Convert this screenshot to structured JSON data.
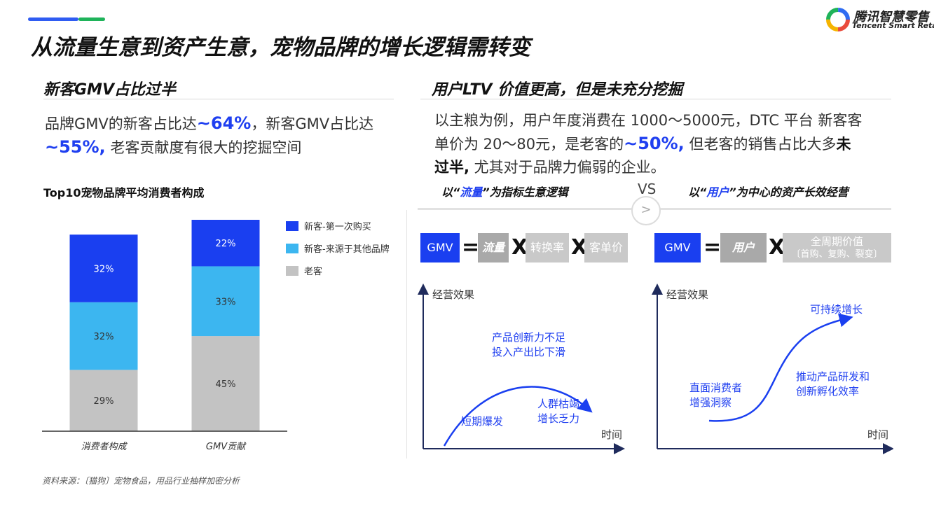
{
  "header": {
    "title": "从流量生意到资产生意，宠物品牌的增长逻辑需转变",
    "logo_cn": "腾讯智慧零售",
    "logo_en": "Tencent Smart Retail",
    "accent_blue": "#2f5cf2",
    "accent_green": "#1fb35a"
  },
  "left": {
    "section_title": "新客GMV占比过半",
    "desc_part1": "品牌GMV的新客占比达",
    "desc_hl1": "~64%",
    "desc_part2": "，新客GMV占比达",
    "desc_hl2": "~55%,",
    "desc_part3": " 老客贡献度有很大的挖掘空间",
    "source": "资料来源：〔猫狗〕宠物食品，用品行业抽样加密分析"
  },
  "chart_data": {
    "type": "bar",
    "stacked": true,
    "title": "Top10宠物品牌平均消费者构成",
    "categories": [
      "消费者构成",
      "GMV贡献"
    ],
    "series": [
      {
        "name": "老客",
        "values": [
          29,
          45
        ],
        "labels": [
          "29%",
          "45%"
        ],
        "color": "#c3c3c3"
      },
      {
        "name": "新客-来源于其他品牌",
        "values": [
          32,
          33
        ],
        "labels": [
          "32%",
          "33%"
        ],
        "color": "#3cb6f0"
      },
      {
        "name": "新客-第一次购买",
        "values": [
          32,
          22
        ],
        "labels": [
          "32%",
          "22%"
        ],
        "color": "#1a3ff0"
      }
    ],
    "legend": [
      "新客-第一次购买",
      "新客-来源于其他品牌",
      "老客"
    ],
    "legend_position": "right",
    "ylim": [
      0,
      100
    ],
    "grid": false
  },
  "right": {
    "section_title": "用户LTV 价值更高，但是未充分挖掘",
    "desc_line1": "以主粮为例，用户年度消费在 1000～5000元，DTC 平台 新客客",
    "desc_line2a": "单价为 20～80元，是老客的",
    "desc_line2_hl": "~50%,",
    "desc_line2b": " 但老客的销售占比大多",
    "desc_line2_bold": "未",
    "desc_line3_bold": "过半,",
    "desc_line3b": " 尤其对于品牌力偏弱的企业。",
    "vs": "VS",
    "vs_arrow": ">",
    "left_logic": {
      "pre": "以“",
      "hl": "流量",
      "post": "”为指标生意逻辑"
    },
    "right_logic": {
      "pre": "以“",
      "hl": "用户",
      "post": "”为中心的资产长效经营"
    },
    "formula_left": {
      "gmv": "GMV",
      "eq": "=",
      "traffic": "流量",
      "x": "X",
      "conversion": "转换率",
      "unit_price": "客单价"
    },
    "formula_right": {
      "gmv": "GMV",
      "eq": "=",
      "users": "用户",
      "x": "X",
      "lifetime_line1": "全周期价值",
      "lifetime_line2": "〔首购、复购、裂变〕"
    },
    "curve_left": {
      "y_label": "经营效果",
      "x_label": "时间",
      "note_top_1": "产品创新力不足",
      "note_top_2": "投入产出比下滑",
      "note_left": "短期爆发",
      "note_right_1": "人群枯竭",
      "note_right_2": "增长乏力"
    },
    "curve_right": {
      "y_label": "经营效果",
      "x_label": "时间",
      "note_top": "可持续增长",
      "note_mid_1": "推动产品研发和",
      "note_mid_2": "创新孵化效率",
      "note_left_1": "直面消费者",
      "note_left_2": "增强洞察"
    }
  }
}
